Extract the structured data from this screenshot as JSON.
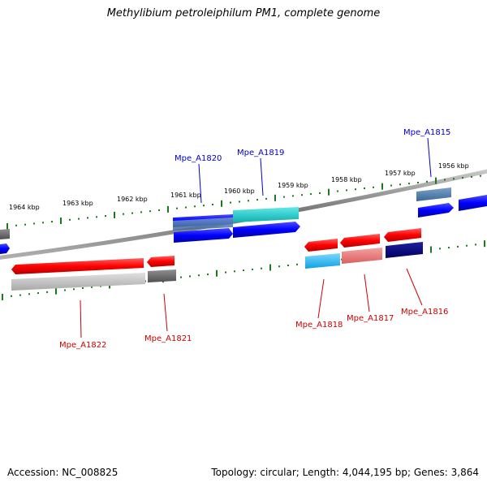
{
  "title": "Methylibium petroleiphilum PM1, complete genome",
  "footer": {
    "accession": "Accession: NC_008825",
    "summary": "Topology: circular; Length: 4,044,195 bp; Genes: 3,864"
  },
  "colors": {
    "forward_label": "#0000cc",
    "reverse_label": "#cc0000",
    "tick": "#1a7a1a",
    "backbone": "#808080"
  },
  "scale_labels": [
    "1964 kbp",
    "1963 kbp",
    "1962 kbp",
    "1961 kbp",
    "1960 kbp",
    "1959 kbp",
    "1958 kbp",
    "1957 kbp",
    "1956 kbp"
  ],
  "forward_gene_labels": [
    "Mpe_A1820",
    "Mpe_A1819",
    "Mpe_A1815"
  ],
  "reverse_gene_labels": [
    "Mpe_A1822",
    "Mpe_A1821",
    "Mpe_A1818",
    "Mpe_A1817",
    "Mpe_A1816"
  ]
}
